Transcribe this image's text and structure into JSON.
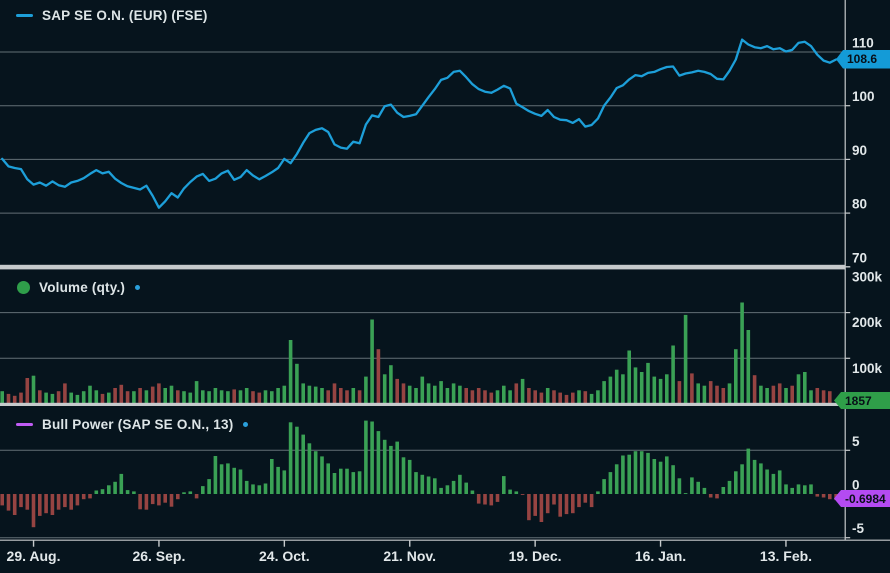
{
  "colors": {
    "background": "#06141d",
    "grid": "#aeb9bd",
    "axis": "#c6cacc",
    "separator": "#c6cacc",
    "axis_text": "#e2e8ea",
    "price_line": "#1d9fd9",
    "up_bar": "#3aa155",
    "down_bar": "#964442",
    "legend_dot": "#2aa0dc",
    "price_badge": "#149bd7",
    "volume_badge": "#2f9e49",
    "bull_badge": "#b44bf2",
    "bull_swatch": "#c05cf5",
    "volume_swatch": "#2f9e4a"
  },
  "legends": {
    "price": {
      "label": "SAP SE O.N. (EUR) (FSE)"
    },
    "volume": {
      "label": "Volume (qty.)"
    },
    "bull_power": {
      "label": "Bull Power (SAP SE O.N., 13)"
    }
  },
  "badges": {
    "price": {
      "text": "108.6"
    },
    "volume": {
      "text": "1857"
    },
    "bull_power": {
      "text": "-0.6984"
    }
  },
  "x_axis": {
    "labels": [
      "29. Aug.",
      "26. Sep.",
      "24. Oct.",
      "21. Nov.",
      "19. Dec.",
      "16. Jan.",
      "13. Feb."
    ],
    "tick_indices": [
      5,
      25,
      45,
      65,
      85,
      105,
      125
    ]
  },
  "chart_data": [
    {
      "id": "price",
      "type": "line",
      "title": "SAP SE O.N. (EUR) (FSE)",
      "unit": "EUR",
      "last_value": 108.6,
      "ylim": [
        70.3,
        119.7
      ],
      "grid_values": [
        110,
        100,
        90,
        80
      ],
      "y_ticks": [
        {
          "value": 110,
          "label": "110"
        },
        {
          "value": 100,
          "label": "100"
        },
        {
          "value": 90,
          "label": "90"
        },
        {
          "value": 80,
          "label": "80"
        },
        {
          "value": 70,
          "label": "70"
        }
      ],
      "values": [
        90.1,
        88.7,
        88.4,
        88.2,
        86.3,
        85.3,
        85.7,
        85.1,
        85.9,
        85.2,
        84.9,
        85.7,
        86.0,
        86.5,
        87.3,
        88.0,
        87.4,
        87.7,
        86.4,
        85.6,
        85.0,
        84.7,
        84.4,
        85.1,
        83.2,
        81.0,
        82.2,
        83.7,
        82.9,
        84.6,
        85.8,
        86.8,
        87.3,
        86.0,
        86.4,
        87.4,
        87.9,
        86.2,
        86.7,
        88.0,
        87.0,
        86.3,
        86.9,
        87.6,
        88.4,
        90.1,
        89.3,
        91.0,
        93.1,
        94.9,
        95.5,
        95.8,
        95.1,
        92.8,
        92.2,
        92.0,
        93.3,
        93.0,
        96.5,
        98.2,
        97.9,
        99.9,
        100.2,
        98.7,
        97.9,
        98.1,
        98.4,
        100.0,
        101.6,
        103.1,
        104.8,
        105.2,
        106.3,
        106.5,
        105.3,
        104.0,
        103.1,
        102.6,
        102.4,
        103.0,
        103.7,
        103.2,
        100.4,
        99.7,
        99.0,
        98.5,
        98.1,
        99.2,
        97.9,
        97.4,
        97.3,
        96.8,
        97.5,
        96.1,
        96.4,
        97.6,
        100.0,
        101.5,
        103.3,
        103.8,
        104.9,
        105.7,
        105.5,
        106.1,
        106.3,
        106.8,
        107.2,
        107.3,
        105.6,
        106.0,
        106.2,
        106.5,
        106.3,
        105.9,
        105.0,
        104.9,
        106.5,
        108.6,
        112.3,
        111.4,
        110.9,
        110.7,
        111.1,
        110.5,
        110.7,
        110.1,
        110.4,
        111.7,
        111.9,
        111.1,
        109.5,
        108.4,
        108.0,
        108.6
      ]
    },
    {
      "id": "volume",
      "type": "bar",
      "title": "Volume (qty.)",
      "last_value": 1857,
      "ylim": [
        0,
        293000
      ],
      "grid_values": [
        300000,
        200000,
        100000
      ],
      "y_ticks": [
        {
          "value": 300000,
          "label": "300k"
        },
        {
          "value": 200000,
          "label": "200k"
        },
        {
          "value": 100000,
          "label": "100k"
        }
      ],
      "values": [
        28000,
        22000,
        18000,
        25000,
        57000,
        62000,
        30000,
        25000,
        22000,
        28000,
        45000,
        25000,
        20000,
        28000,
        40000,
        30000,
        22000,
        25000,
        35000,
        42000,
        28000,
        28000,
        35000,
        30000,
        38000,
        45000,
        35000,
        40000,
        30000,
        28000,
        25000,
        50000,
        30000,
        28000,
        35000,
        30000,
        28000,
        32000,
        30000,
        35000,
        28000,
        25000,
        30000,
        28000,
        35000,
        40000,
        140000,
        88000,
        45000,
        40000,
        38000,
        35000,
        30000,
        45000,
        35000,
        30000,
        35000,
        30000,
        60000,
        185000,
        120000,
        65000,
        85000,
        55000,
        45000,
        40000,
        35000,
        60000,
        45000,
        40000,
        50000,
        35000,
        45000,
        40000,
        35000,
        30000,
        35000,
        30000,
        25000,
        30000,
        40000,
        30000,
        45000,
        55000,
        35000,
        30000,
        25000,
        35000,
        30000,
        25000,
        20000,
        25000,
        30000,
        28000,
        22000,
        30000,
        50000,
        60000,
        75000,
        65000,
        117000,
        80000,
        70000,
        90000,
        60000,
        55000,
        65000,
        128000,
        50000,
        195000,
        67000,
        45000,
        40000,
        50000,
        40000,
        35000,
        45000,
        120000,
        222000,
        162000,
        63000,
        40000,
        35000,
        40000,
        45000,
        35000,
        40000,
        65000,
        70000,
        30000,
        35000,
        30000,
        28000,
        1857
      ],
      "bar_directions": "grrrrgrggrrgggggrgrrrgrgrrggrggggggggrggrrggggggggggrrrrgrggrggrrgggggggggrrrrrgggrgrrrgrrrrgrggggggggggggggrgrggrrrggggrggrrgrgggrrrrg"
    },
    {
      "id": "bull_power",
      "type": "bar",
      "title": "Bull Power (SAP SE O.N., 13)",
      "indicator_period": 13,
      "last_value": -0.6984,
      "ylim": [
        -5.3,
        10.2
      ],
      "grid_values": [
        5,
        -5
      ],
      "y_ticks": [
        {
          "value": 5,
          "label": "5"
        },
        {
          "value": 0,
          "label": "0"
        },
        {
          "value": -5,
          "label": "-5"
        }
      ],
      "values": [
        -1.3,
        -1.9,
        -2.4,
        -1.5,
        -1.8,
        -3.8,
        -2.5,
        -2.2,
        -2.4,
        -1.8,
        -1.5,
        -1.8,
        -1.3,
        -0.6,
        -0.5,
        0.4,
        0.55,
        1.0,
        1.4,
        2.3,
        0.45,
        0.3,
        -1.75,
        -1.8,
        -1.15,
        -1.3,
        -1.0,
        -1.45,
        -0.6,
        0.2,
        0.3,
        -0.5,
        0.9,
        1.7,
        4.35,
        3.4,
        3.5,
        3.0,
        2.8,
        1.5,
        1.1,
        1.0,
        1.2,
        4.0,
        3.1,
        2.7,
        8.2,
        7.7,
        6.8,
        5.8,
        4.9,
        4.3,
        3.5,
        2.4,
        2.9,
        2.9,
        2.5,
        2.6,
        8.4,
        8.3,
        7.2,
        6.2,
        5.5,
        6.0,
        4.2,
        3.9,
        2.5,
        2.2,
        2.0,
        1.8,
        0.7,
        1.0,
        1.5,
        2.2,
        1.3,
        0.4,
        -1.1,
        -1.2,
        -1.3,
        -0.9,
        2.05,
        0.5,
        0.3,
        -0.1,
        -3.0,
        -2.5,
        -3.2,
        -2.2,
        -1.2,
        -2.6,
        -2.3,
        -2.2,
        -1.5,
        -1.0,
        -1.5,
        0.3,
        1.7,
        2.5,
        3.4,
        4.4,
        4.5,
        4.9,
        4.9,
        4.7,
        4.0,
        3.7,
        4.3,
        3.3,
        1.8,
        0.1,
        1.9,
        1.4,
        0.7,
        -0.4,
        -0.5,
        0.8,
        1.5,
        2.6,
        3.4,
        5.2,
        3.9,
        3.5,
        2.8,
        2.3,
        2.7,
        1.1,
        0.7,
        1.1,
        1.0,
        1.1,
        -0.3,
        -0.4,
        -0.6,
        -0.6984
      ]
    }
  ]
}
